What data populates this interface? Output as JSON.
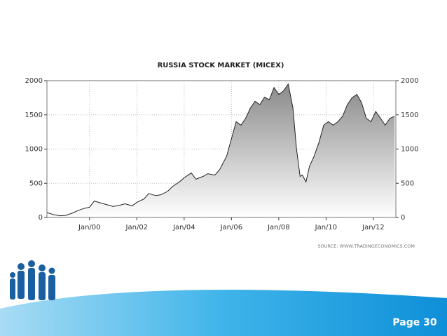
{
  "chart_data": {
    "type": "area",
    "title": "RUSSIA STOCK MARKET (MICEX)",
    "source": "SOURCE: WWW.TRADINGECONOMICS.COM",
    "color": "#222222",
    "grid": true,
    "x": [
      1998.2,
      1998.5,
      1998.75,
      1999.0,
      1999.25,
      1999.5,
      1999.75,
      2000.0,
      2000.2,
      2000.4,
      2000.6,
      2000.8,
      2001.0,
      2001.3,
      2001.5,
      2001.8,
      2002.0,
      2002.3,
      2002.5,
      2002.8,
      2003.0,
      2003.3,
      2003.5,
      2003.8,
      2004.0,
      2004.3,
      2004.5,
      2004.8,
      2005.0,
      2005.3,
      2005.5,
      2005.8,
      2006.0,
      2006.2,
      2006.4,
      2006.6,
      2006.8,
      2007.0,
      2007.2,
      2007.4,
      2007.6,
      2007.8,
      2008.0,
      2008.2,
      2008.4,
      2008.6,
      2008.75,
      2008.9,
      2009.0,
      2009.15,
      2009.3,
      2009.5,
      2009.7,
      2009.9,
      2010.1,
      2010.3,
      2010.5,
      2010.7,
      2010.9,
      2011.1,
      2011.3,
      2011.5,
      2011.7,
      2011.9,
      2012.1,
      2012.3,
      2012.5,
      2012.7,
      2012.9
    ],
    "values": [
      70,
      40,
      25,
      30,
      60,
      100,
      130,
      150,
      240,
      220,
      200,
      180,
      160,
      180,
      200,
      170,
      220,
      270,
      350,
      320,
      330,
      380,
      450,
      520,
      580,
      650,
      560,
      600,
      640,
      620,
      700,
      900,
      1150,
      1400,
      1350,
      1450,
      1600,
      1700,
      1650,
      1760,
      1720,
      1900,
      1800,
      1850,
      1950,
      1600,
      1000,
      600,
      620,
      520,
      750,
      900,
      1100,
      1350,
      1400,
      1350,
      1400,
      1480,
      1650,
      1750,
      1800,
      1680,
      1450,
      1400,
      1550,
      1450,
      1350,
      1450,
      1480
    ],
    "xlim": [
      1998.2,
      2012.95
    ],
    "xticks": [
      {
        "value": 2000,
        "label": "Jan/00"
      },
      {
        "value": 2002,
        "label": "Jan/02"
      },
      {
        "value": 2004,
        "label": "Jan/04"
      },
      {
        "value": 2006,
        "label": "Jan/06"
      },
      {
        "value": 2008,
        "label": "Jan/08"
      },
      {
        "value": 2010,
        "label": "Jan/10"
      },
      {
        "value": 2012,
        "label": "Jan/12"
      }
    ],
    "ylim": [
      0,
      2000
    ],
    "yticks": [
      0,
      500,
      1000,
      1500,
      2000
    ],
    "y2lim": [
      0,
      2000
    ],
    "y2ticks": [
      0,
      500,
      1000,
      1500,
      2000
    ]
  },
  "page_label": "Page 30"
}
